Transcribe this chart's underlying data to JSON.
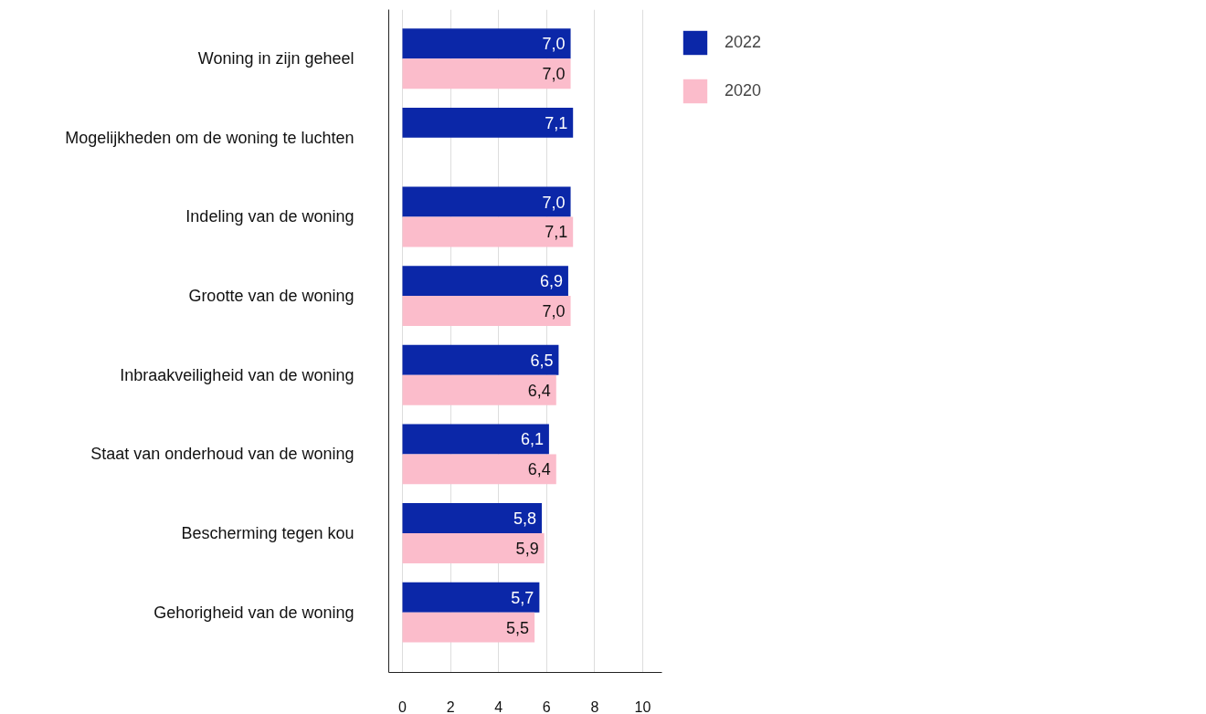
{
  "chart_data": {
    "type": "bar",
    "orientation": "horizontal",
    "categories": [
      "Woning in zijn geheel",
      "Mogelijkheden om de woning te luchten",
      "Indeling van de woning",
      "Grootte van de woning",
      "Inbraakveiligheid van de woning",
      "Staat van onderhoud van de woning",
      "Bescherming tegen kou",
      "Gehorigheid van de woning"
    ],
    "series": [
      {
        "name": "2022",
        "color": "#0b27a8",
        "values": [
          7.0,
          7.1,
          7.0,
          6.9,
          6.5,
          6.1,
          5.8,
          5.7
        ],
        "value_labels": [
          "7,0",
          "7,1",
          "7,0",
          "6,9",
          "6,5",
          "6,1",
          "5,8",
          "5,7"
        ]
      },
      {
        "name": "2020",
        "color": "#fbbccb",
        "values": [
          7.0,
          null,
          7.1,
          7.0,
          6.4,
          6.4,
          5.9,
          5.5
        ],
        "value_labels": [
          "7,0",
          null,
          "7,1",
          "7,0",
          "6,4",
          "6,4",
          "5,9",
          "5,5"
        ]
      }
    ],
    "xlim": [
      -0.57,
      10.8
    ],
    "xticks": [
      0,
      2,
      4,
      6,
      8,
      10
    ],
    "grid": "x",
    "legend": "top right"
  }
}
